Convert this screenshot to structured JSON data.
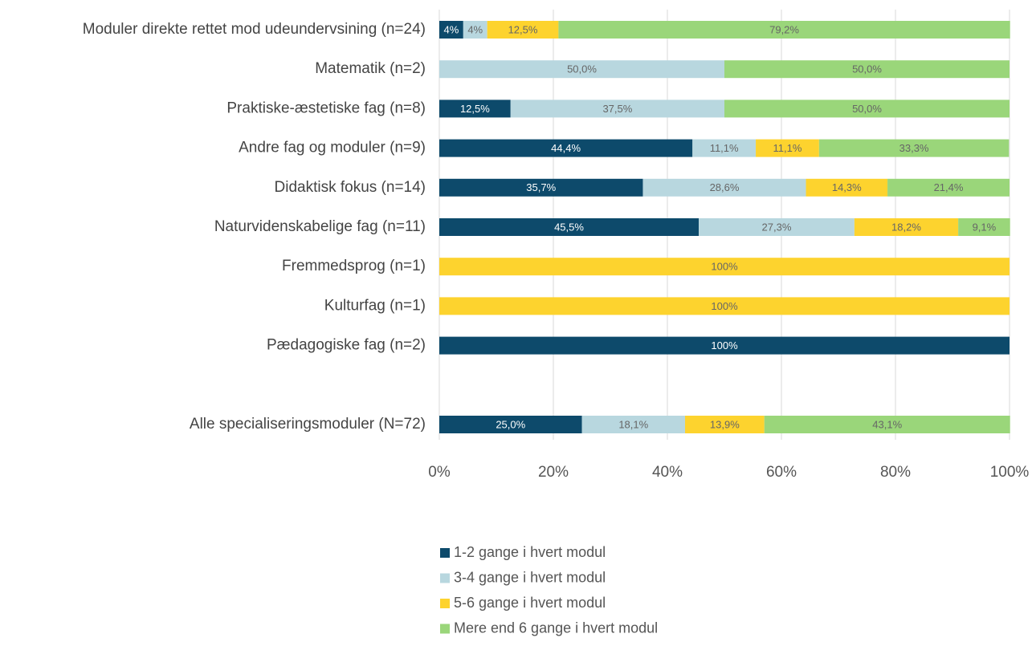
{
  "chart_data": {
    "type": "bar",
    "orientation": "horizontal",
    "stacked": true,
    "categories": [
      "Moduler direkte rettet mod udeundervsining (n=24)",
      "Matematik (n=2)",
      "Praktiske-æstetiske fag (n=8)",
      "Andre fag og moduler (n=9)",
      "Didaktisk fokus (n=14)",
      "Naturvidenskabelige fag (n=11)",
      "Fremmedsprog (n=1)",
      "Kulturfag (n=1)",
      "Pædagogiske fag (n=2)",
      null,
      "Alle specialiseringsmoduler (N=72)"
    ],
    "series": [
      {
        "name": "1-2 gange i hvert modul",
        "color": "#0d4a6b",
        "values": [
          4.2,
          null,
          12.5,
          44.4,
          35.7,
          45.5,
          null,
          null,
          100,
          null,
          25.0
        ],
        "value_labels": [
          "4%",
          null,
          "12,5%",
          "44,4%",
          "35,7%",
          "45,5%",
          null,
          null,
          "100%",
          null,
          "25,0%"
        ]
      },
      {
        "name": "3-4 gange i hvert modul",
        "color": "#b8d7df",
        "values": [
          4.2,
          50.0,
          37.5,
          11.1,
          28.6,
          27.3,
          null,
          null,
          null,
          null,
          18.1
        ],
        "value_labels": [
          "4%",
          "50,0%",
          "37,5%",
          "11,1%",
          "28,6%",
          "27,3%",
          null,
          null,
          null,
          null,
          "18,1%"
        ]
      },
      {
        "name": "5-6 gange i hvert modul",
        "color": "#fdd32e",
        "values": [
          12.5,
          null,
          null,
          11.1,
          14.3,
          18.2,
          100,
          100,
          null,
          null,
          13.9
        ],
        "value_labels": [
          "12,5%",
          null,
          null,
          "11,1%",
          "14,3%",
          "18,2%",
          "100%",
          "100%",
          null,
          null,
          "13,9%"
        ]
      },
      {
        "name": "Mere end 6 gange i hvert modul",
        "color": "#9ad67a",
        "values": [
          79.2,
          50.0,
          50.0,
          33.3,
          21.4,
          9.1,
          null,
          null,
          null,
          null,
          43.1
        ],
        "value_labels": [
          "79,2%",
          "50,0%",
          "50,0%",
          "33,3%",
          "21,4%",
          "9,1%",
          null,
          null,
          null,
          null,
          "43,1%"
        ]
      }
    ],
    "xlim": [
      0,
      100
    ],
    "xticks": [
      {
        "value": 0,
        "label": "0%"
      },
      {
        "value": 20,
        "label": "20%"
      },
      {
        "value": 40,
        "label": "40%"
      },
      {
        "value": 60,
        "label": "60%"
      },
      {
        "value": 80,
        "label": "80%"
      },
      {
        "value": 100,
        "label": "100%"
      }
    ],
    "grid": true,
    "legend": "bottom"
  }
}
